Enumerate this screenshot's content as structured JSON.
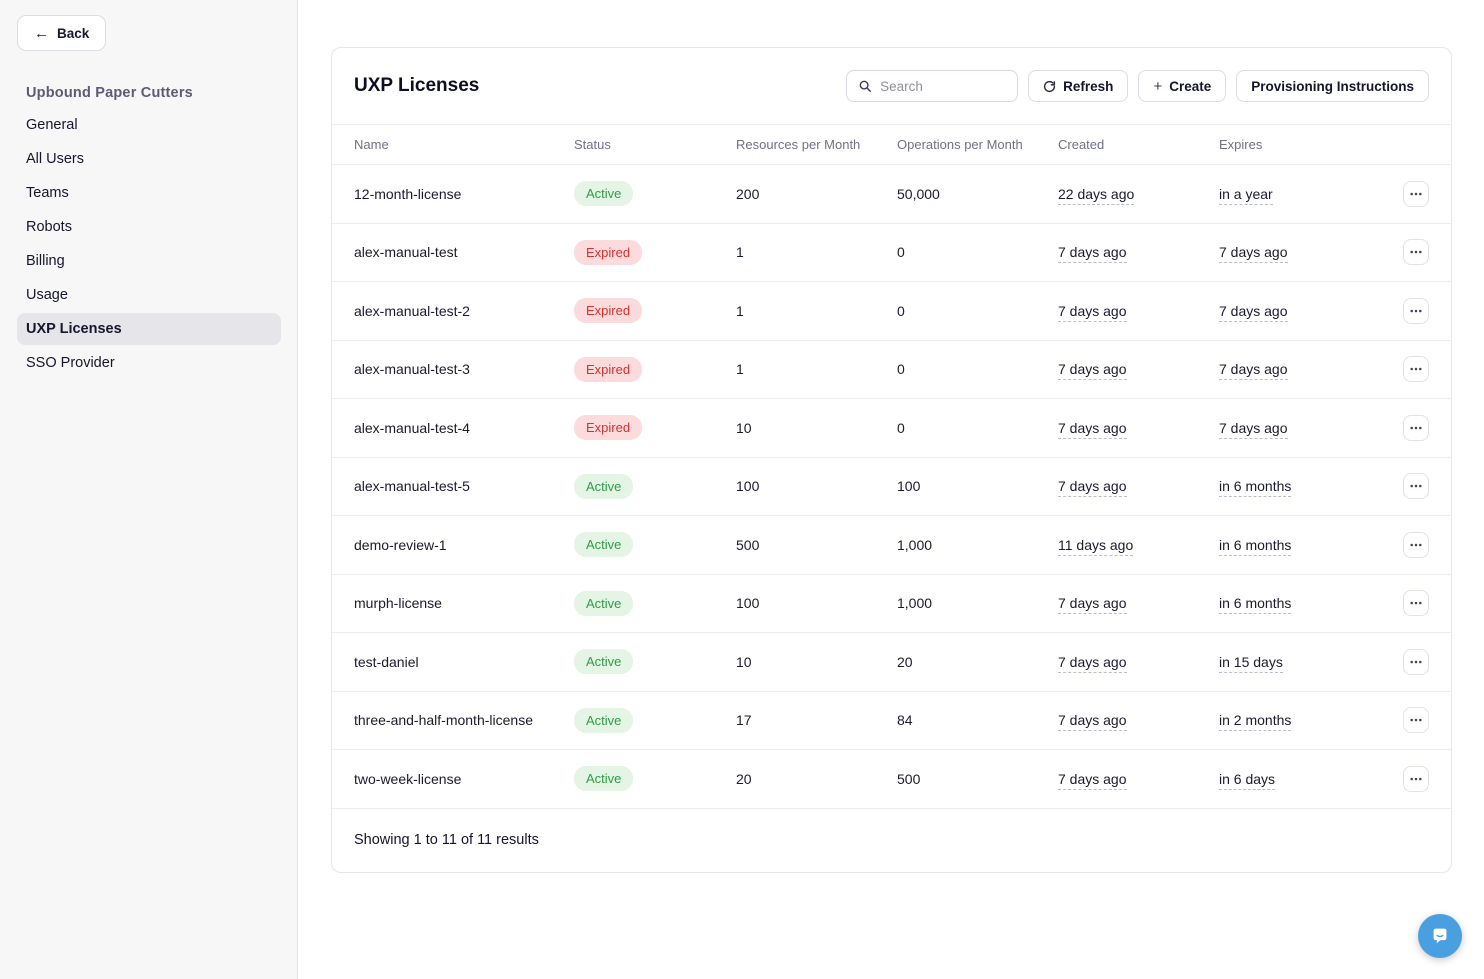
{
  "sidebar": {
    "back_label": "Back",
    "org_title": "Upbound Paper Cutters",
    "items": [
      {
        "label": "General",
        "active": false
      },
      {
        "label": "All Users",
        "active": false
      },
      {
        "label": "Teams",
        "active": false
      },
      {
        "label": "Robots",
        "active": false
      },
      {
        "label": "Billing",
        "active": false
      },
      {
        "label": "Usage",
        "active": false
      },
      {
        "label": "UXP Licenses",
        "active": true
      },
      {
        "label": "SSO Provider",
        "active": false
      }
    ]
  },
  "header": {
    "title": "UXP Licenses",
    "search_placeholder": "Search",
    "refresh_label": "Refresh",
    "create_label": "Create",
    "provisioning_label": "Provisioning Instructions"
  },
  "icons": {
    "back_arrow": "←",
    "plus": "+",
    "search": "magnifier-icon",
    "refresh": "circular-arrow-icon",
    "row_menu": "ellipsis-icon",
    "chat": "speech-bubble-smile-icon"
  },
  "table": {
    "columns": [
      "Name",
      "Status",
      "Resources per Month",
      "Operations per Month",
      "Created",
      "Expires"
    ],
    "rows": [
      {
        "name": "12-month-license",
        "status": "Active",
        "resources": "200",
        "operations": "50,000",
        "created": "22 days ago",
        "expires": "in a year"
      },
      {
        "name": "alex-manual-test",
        "status": "Expired",
        "resources": "1",
        "operations": "0",
        "created": "7 days ago",
        "expires": "7 days ago"
      },
      {
        "name": "alex-manual-test-2",
        "status": "Expired",
        "resources": "1",
        "operations": "0",
        "created": "7 days ago",
        "expires": "7 days ago"
      },
      {
        "name": "alex-manual-test-3",
        "status": "Expired",
        "resources": "1",
        "operations": "0",
        "created": "7 days ago",
        "expires": "7 days ago"
      },
      {
        "name": "alex-manual-test-4",
        "status": "Expired",
        "resources": "10",
        "operations": "0",
        "created": "7 days ago",
        "expires": "7 days ago"
      },
      {
        "name": "alex-manual-test-5",
        "status": "Active",
        "resources": "100",
        "operations": "100",
        "created": "7 days ago",
        "expires": "in 6 months"
      },
      {
        "name": "demo-review-1",
        "status": "Active",
        "resources": "500",
        "operations": "1,000",
        "created": "11 days ago",
        "expires": "in 6 months"
      },
      {
        "name": "murph-license",
        "status": "Active",
        "resources": "100",
        "operations": "1,000",
        "created": "7 days ago",
        "expires": "in 6 months"
      },
      {
        "name": "test-daniel",
        "status": "Active",
        "resources": "10",
        "operations": "20",
        "created": "7 days ago",
        "expires": "in 15 days"
      },
      {
        "name": "three-and-half-month-license",
        "status": "Active",
        "resources": "17",
        "operations": "84",
        "created": "7 days ago",
        "expires": "in 2 months"
      },
      {
        "name": "two-week-license",
        "status": "Active",
        "resources": "20",
        "operations": "500",
        "created": "7 days ago",
        "expires": "in 6 days"
      }
    ],
    "footer_text": "Showing 1 to 11 of 11 results"
  },
  "colors": {
    "status_active_bg": "#e4f4e5",
    "status_active_text": "#2e9e44",
    "status_expired_bg": "#fbdbdb",
    "status_expired_text": "#d63131",
    "chat_launcher": "#4a9fe0",
    "sidebar_bg": "#f7f7f8",
    "active_nav_bg": "#e6e6ea"
  }
}
